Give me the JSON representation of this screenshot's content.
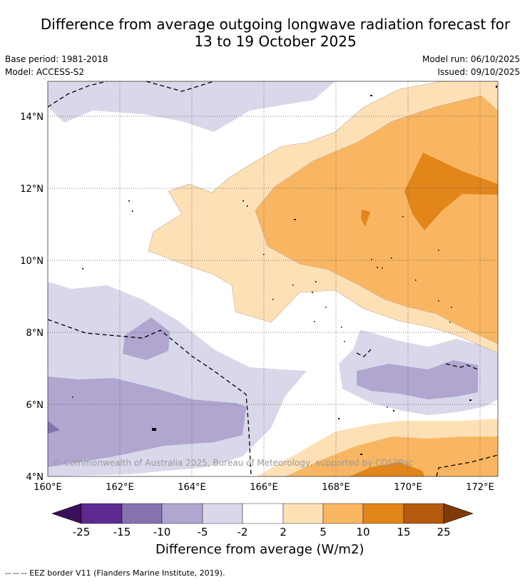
{
  "header": {
    "title_line1": "Difference from average outgoing longwave radiation forecast for",
    "title_line2": "13 to 19 October 2025",
    "base_period": "Base period: 1981-2018",
    "model": "Model: ACCESS-S2",
    "model_run": "Model run: 06/10/2025",
    "issued": "Issued: 09/10/2025"
  },
  "map": {
    "x_ticks": [
      "160°E",
      "162°E",
      "164°E",
      "166°E",
      "168°E",
      "170°E",
      "172°E"
    ],
    "y_ticks": [
      "14°N",
      "12°N",
      "10°N",
      "8°N",
      "6°N",
      "4°N"
    ],
    "copyright": "© Commonwealth of Australia 2025, Bureau of Meteorology, supported by COSPPac"
  },
  "colorbar": {
    "ticks": [
      "-25",
      "-15",
      "-10",
      "-5",
      "-2",
      "2",
      "5",
      "10",
      "15",
      "25"
    ],
    "colors": [
      "#3b0f5c",
      "#5e2a8f",
      "#8473b0",
      "#b0a6d0",
      "#d9d8ea",
      "#ffffff",
      "#fde0b5",
      "#f9b662",
      "#e2851b",
      "#b35a0f",
      "#7f3b08"
    ],
    "label": "Difference from average (W/m2)"
  },
  "legend": {
    "eez": "--  --  -- EEZ border V11 (Flanders Marine Institute, 2019)."
  }
}
